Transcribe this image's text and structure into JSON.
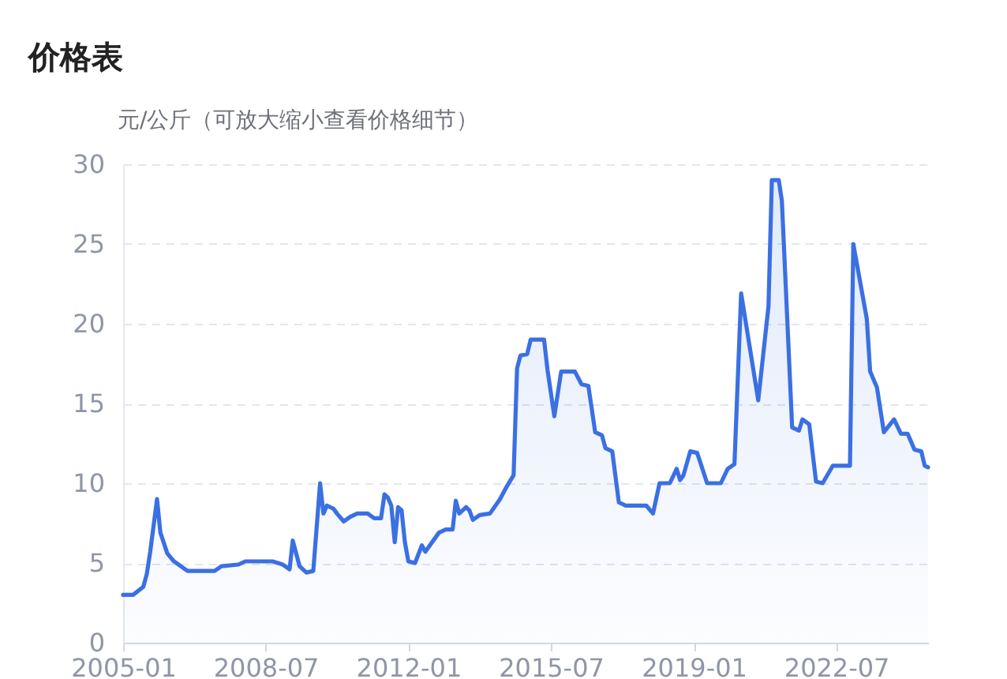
{
  "chart_data": {
    "type": "area",
    "title": "价格表",
    "ylabel": "元/公斤（可放大缩小查看价格细节）",
    "x": [
      "2005-01",
      "2005-04",
      "2005-07",
      "2005-08",
      "2005-09",
      "2005-11",
      "2005-12",
      "2006-02",
      "2006-04",
      "2006-08",
      "2007-04",
      "2007-06",
      "2007-11",
      "2008-01",
      "2008-09",
      "2008-12",
      "2009-02",
      "2009-03",
      "2009-05",
      "2009-07",
      "2009-09",
      "2009-11",
      "2009-12",
      "2010-01",
      "2010-03",
      "2010-04",
      "2010-06",
      "2010-08",
      "2010-10",
      "2011-01",
      "2011-03",
      "2011-05",
      "2011-06",
      "2011-07",
      "2011-08",
      "2011-09",
      "2011-10",
      "2011-11",
      "2011-12",
      "2012-01",
      "2012-03",
      "2012-05",
      "2012-06",
      "2012-10",
      "2012-12",
      "2013-02",
      "2013-03",
      "2013-04",
      "2013-06",
      "2013-07",
      "2013-08",
      "2013-10",
      "2014-01",
      "2014-04",
      "2014-06",
      "2014-08",
      "2014-09",
      "2014-10",
      "2014-12",
      "2015-01",
      "2015-05",
      "2015-06",
      "2015-08",
      "2015-10",
      "2016-02",
      "2016-04",
      "2016-06",
      "2016-08",
      "2016-10",
      "2016-11",
      "2017-01",
      "2017-03",
      "2017-05",
      "2017-11",
      "2018-01",
      "2018-03",
      "2018-06",
      "2018-08",
      "2018-09",
      "2018-10",
      "2018-12",
      "2019-02",
      "2019-05",
      "2019-09",
      "2019-11",
      "2020-01",
      "2020-03",
      "2020-08",
      "2020-11",
      "2020-12",
      "2021-02",
      "2021-03",
      "2021-06",
      "2021-08",
      "2021-09",
      "2021-11",
      "2022-01",
      "2022-03",
      "2022-06",
      "2022-11",
      "2022-12",
      "2023-04",
      "2023-05",
      "2023-07",
      "2023-09",
      "2023-12",
      "2024-02",
      "2024-04",
      "2024-06",
      "2024-08",
      "2024-09",
      "2024-10"
    ],
    "series": [
      {
        "color": "#3b70e3",
        "values": [
          3.0,
          3.0,
          3.5,
          4.3,
          5.7,
          9.0,
          6.9,
          5.6,
          5.1,
          4.5,
          4.5,
          4.8,
          4.9,
          5.1,
          5.1,
          4.9,
          4.6,
          6.4,
          4.8,
          4.4,
          4.5,
          10.0,
          8.1,
          8.6,
          8.4,
          8.1,
          7.6,
          7.9,
          8.1,
          8.1,
          7.8,
          7.8,
          9.3,
          9.1,
          8.6,
          6.3,
          8.5,
          8.3,
          6.3,
          5.1,
          5.0,
          6.1,
          5.7,
          6.9,
          7.1,
          7.1,
          8.9,
          8.1,
          8.5,
          8.3,
          7.7,
          8.0,
          8.1,
          9.0,
          9.8,
          10.5,
          17.2,
          18.0,
          18.1,
          19.0,
          19.0,
          17.1,
          14.2,
          17.0,
          17.0,
          16.2,
          16.1,
          13.2,
          13.0,
          12.2,
          12.0,
          8.8,
          8.6,
          8.6,
          8.1,
          10.0,
          10.0,
          10.9,
          10.2,
          10.5,
          12.0,
          11.9,
          10.0,
          10.0,
          10.9,
          11.2,
          21.9,
          15.2,
          21.1,
          29.0,
          29.0,
          27.7,
          13.5,
          13.3,
          14.0,
          13.7,
          10.1,
          10.0,
          11.1,
          11.1,
          25.0,
          20.3,
          17.0,
          16.0,
          13.2,
          14.0,
          13.1,
          13.1,
          12.1,
          12.0,
          11.1,
          11.0
        ]
      }
    ],
    "xlim": [
      "2005-01",
      "2024-10"
    ],
    "xticks": [
      "2005-01",
      "2008-07",
      "2012-01",
      "2015-07",
      "2019-01",
      "2022-07"
    ],
    "ylim": [
      0,
      30
    ],
    "yticks": [
      0,
      5,
      10,
      15,
      20,
      25,
      30
    ],
    "grid": "y"
  }
}
